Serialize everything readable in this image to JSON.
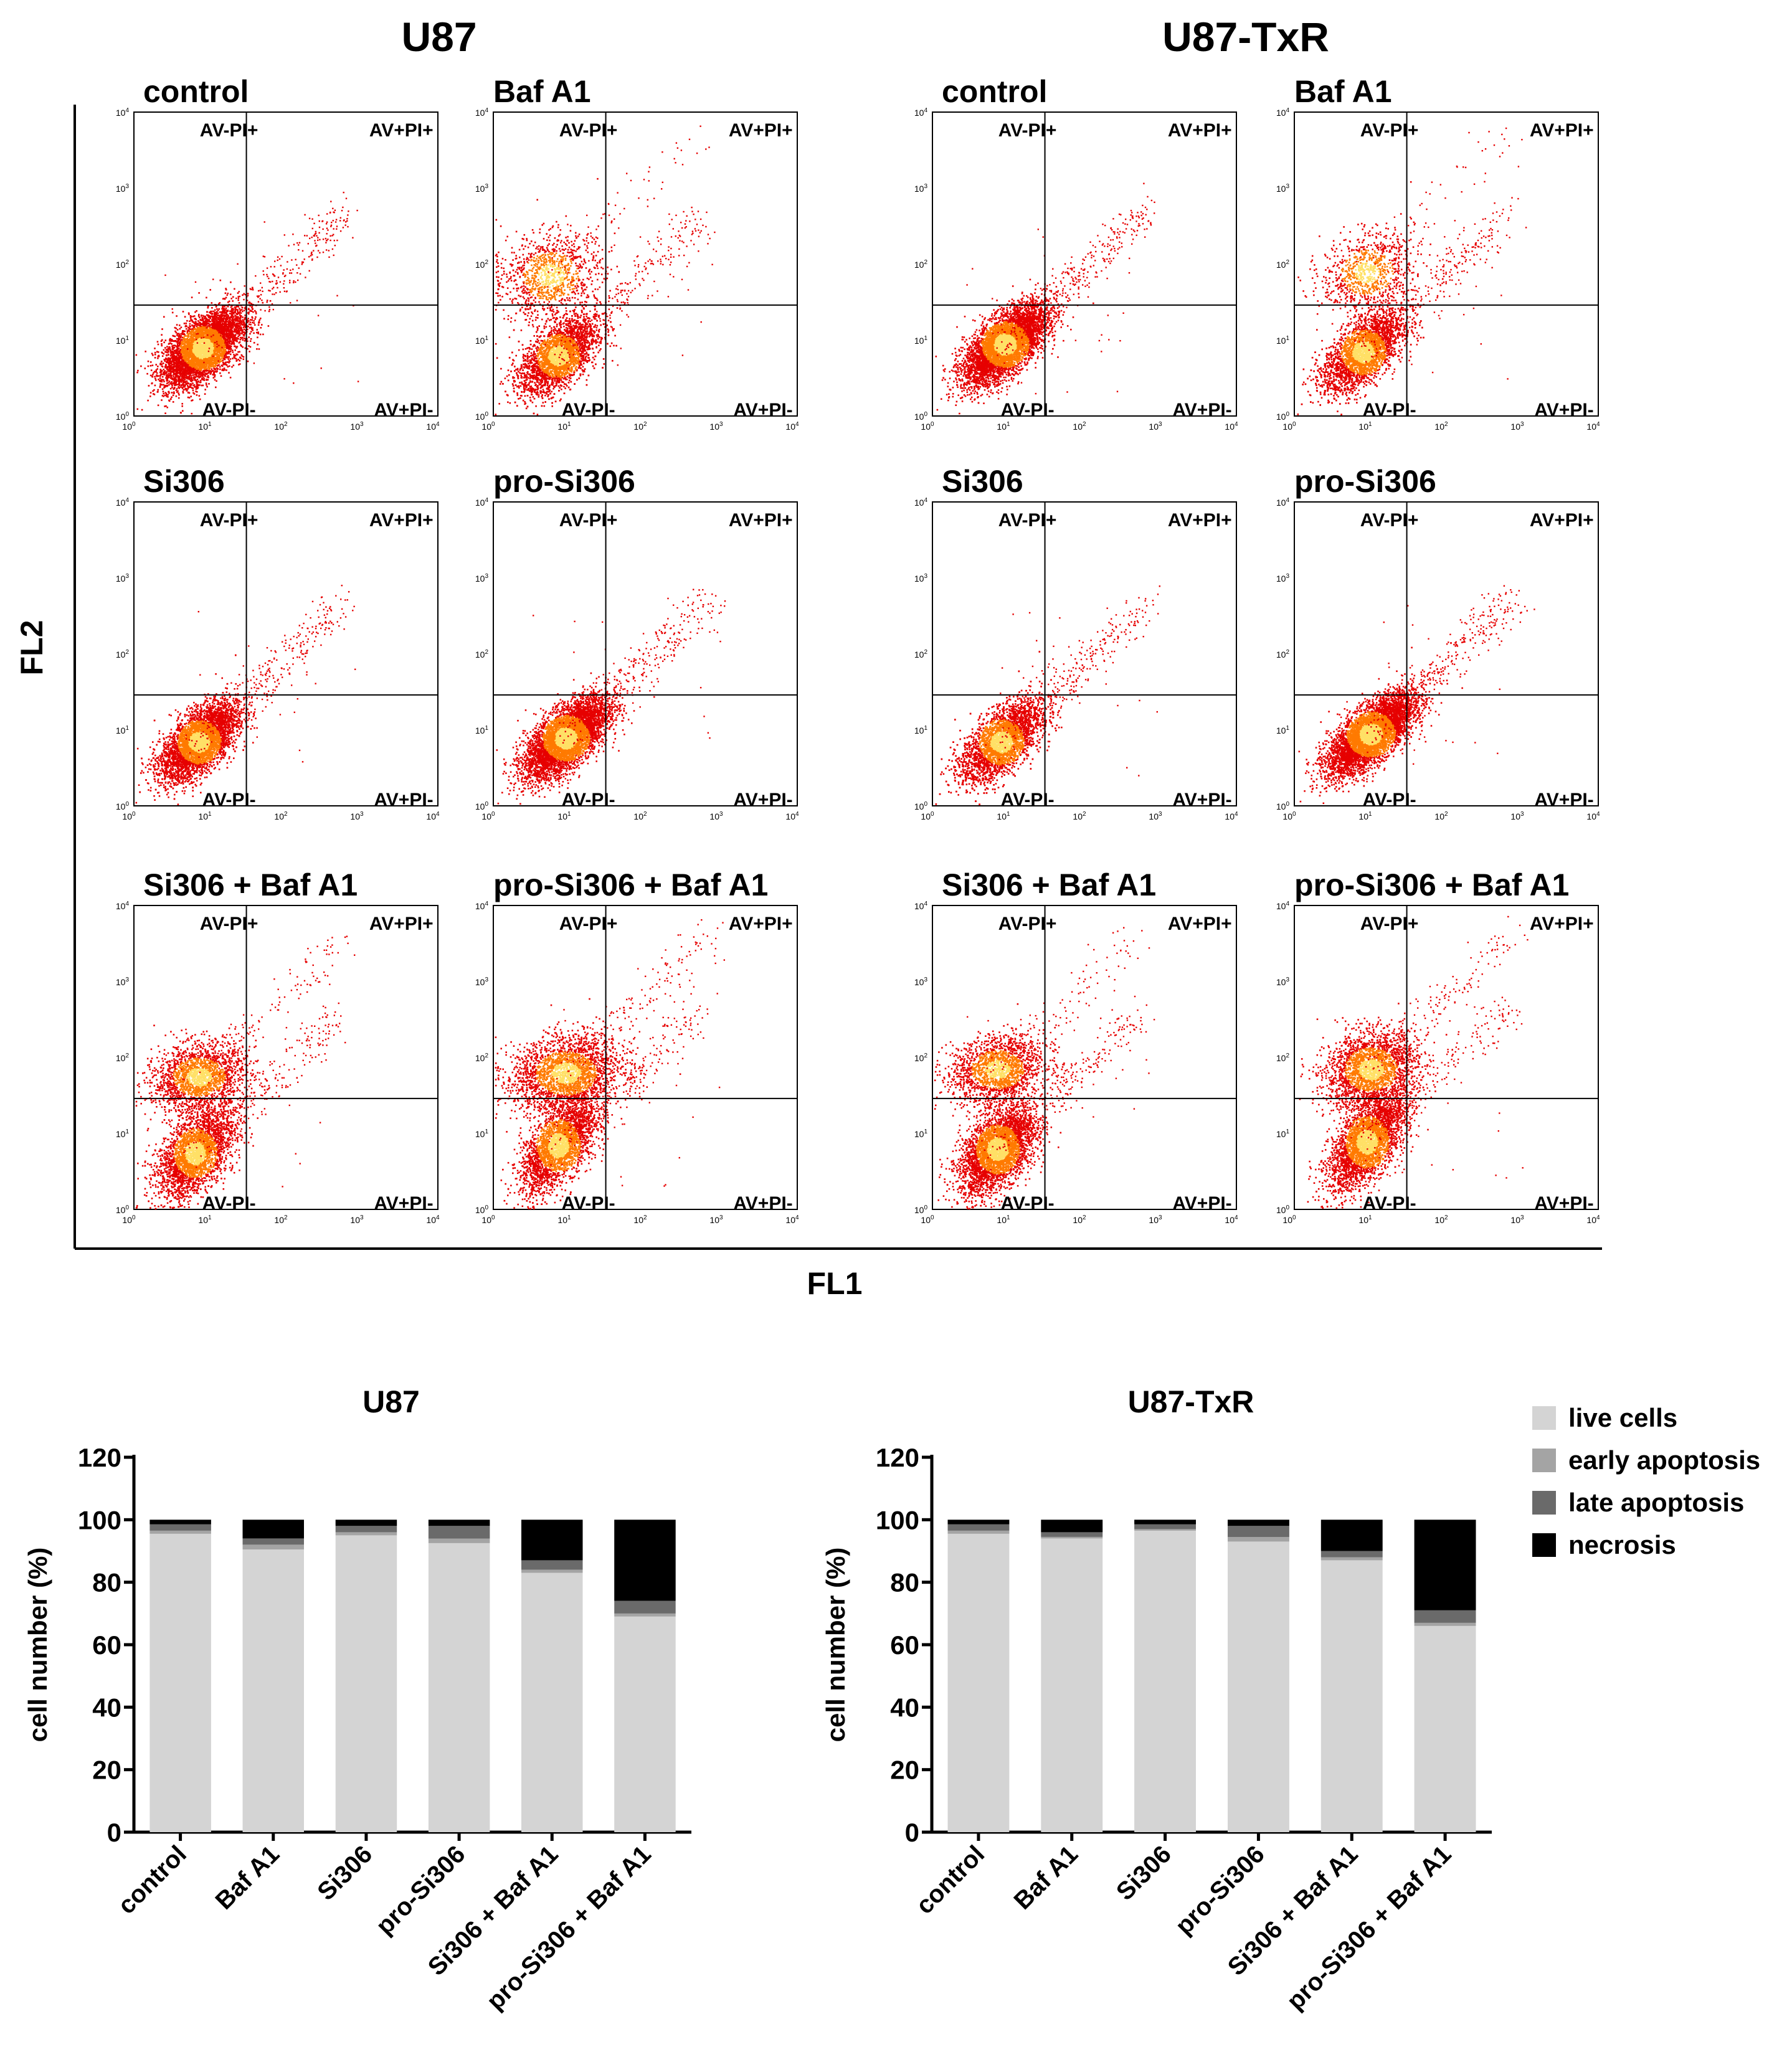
{
  "figure": {
    "top_titles": [
      "U87",
      "U87-TxR"
    ],
    "y_axis_label": "FL2",
    "x_axis_label": "FL1",
    "decades": [
      "10",
      "10",
      "10",
      "10",
      "10"
    ],
    "exponents": [
      "0",
      "1",
      "2",
      "3",
      "4"
    ],
    "quadrants": [
      "AV-PI+",
      "AV+PI+",
      "AV-PI-",
      "AV+PI-"
    ],
    "groups": [
      {
        "title": "U87",
        "panels": [
          {
            "label": "control"
          },
          {
            "label": "Baf A1"
          },
          {
            "label": "Si306"
          },
          {
            "label": "pro-Si306"
          },
          {
            "label": "Si306 + Baf A1"
          },
          {
            "label": "pro-Si306 + Baf A1"
          }
        ]
      },
      {
        "title": "U87-TxR",
        "panels": [
          {
            "label": "control"
          },
          {
            "label": "Baf A1"
          },
          {
            "label": "Si306"
          },
          {
            "label": "pro-Si306"
          },
          {
            "label": "Si306 + Baf A1"
          },
          {
            "label": "pro-Si306 + Baf A1"
          }
        ]
      }
    ]
  },
  "colors": {
    "live": "#d4d4d4",
    "early": "#a4a4a4",
    "late": "#6a6a6a",
    "necrosis": "#000000",
    "dots_low": "#ffe066",
    "dots_mid": "#ff7a00",
    "dots_high": "#e60000"
  },
  "legend": {
    "items": [
      {
        "key": "live",
        "label": "live cells"
      },
      {
        "key": "early",
        "label": "early apoptosis"
      },
      {
        "key": "late",
        "label": "late apoptosis"
      },
      {
        "key": "necrosis",
        "label": "necrosis"
      }
    ]
  },
  "chart_data": [
    {
      "type": "bar",
      "stacked": true,
      "title": "U87",
      "ylabel": "cell number (%)",
      "xlabel": "",
      "ylim": [
        0,
        120
      ],
      "yticks": [
        0,
        20,
        40,
        60,
        80,
        100,
        120
      ],
      "categories": [
        "control",
        "Baf A1",
        "Si306",
        "pro-Si306",
        "Si306 + Baf A1",
        "pro-Si306 + Baf A1"
      ],
      "series": [
        {
          "name": "live cells",
          "key": "live",
          "values": [
            95.5,
            90.5,
            95.0,
            92.5,
            83.0,
            69.0
          ]
        },
        {
          "name": "early apoptosis",
          "key": "early",
          "values": [
            1.0,
            1.5,
            1.0,
            1.5,
            1.0,
            1.0
          ]
        },
        {
          "name": "late apoptosis",
          "key": "late",
          "values": [
            2.0,
            2.0,
            2.0,
            4.0,
            3.0,
            4.0
          ]
        },
        {
          "name": "necrosis",
          "key": "necrosis",
          "values": [
            1.5,
            6.0,
            2.0,
            2.0,
            13.0,
            26.0
          ]
        }
      ]
    },
    {
      "type": "bar",
      "stacked": true,
      "title": "U87-TxR",
      "ylabel": "cell number (%)",
      "xlabel": "",
      "ylim": [
        0,
        120
      ],
      "yticks": [
        0,
        20,
        40,
        60,
        80,
        100,
        120
      ],
      "categories": [
        "control",
        "Baf A1",
        "Si306",
        "pro-Si306",
        "Si306 + Baf A1",
        "pro-Si306 + Baf A1"
      ],
      "series": [
        {
          "name": "live cells",
          "key": "live",
          "values": [
            95.5,
            94.0,
            96.5,
            93.0,
            87.0,
            66.0
          ]
        },
        {
          "name": "early apoptosis",
          "key": "early",
          "values": [
            1.0,
            0.5,
            0.5,
            1.5,
            1.0,
            1.0
          ]
        },
        {
          "name": "late apoptosis",
          "key": "late",
          "values": [
            2.0,
            1.5,
            1.5,
            3.5,
            2.0,
            4.0
          ]
        },
        {
          "name": "necrosis",
          "key": "necrosis",
          "values": [
            1.5,
            4.0,
            1.5,
            2.0,
            10.0,
            29.0
          ]
        }
      ]
    }
  ]
}
